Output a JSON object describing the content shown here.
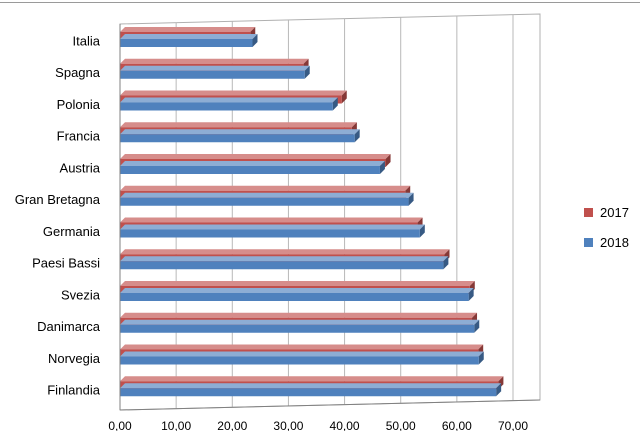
{
  "chart_data": {
    "type": "bar",
    "orientation": "horizontal",
    "categories": [
      "Italia",
      "Spagna",
      "Polonia",
      "Francia",
      "Austria",
      "Gran Bretagna",
      "Germania",
      "Paesi Bassi",
      "Svezia",
      "Danimarca",
      "Norvegia",
      "Finlandia"
    ],
    "series": [
      {
        "name": "2017",
        "values": [
          23.2,
          32.7,
          39.5,
          41.3,
          47.3,
          50.8,
          53.0,
          57.8,
          62.3,
          62.7,
          63.8,
          67.4
        ],
        "color": "#c0504d"
      },
      {
        "name": "2018",
        "values": [
          23.6,
          32.9,
          37.9,
          41.8,
          46.3,
          51.4,
          53.4,
          57.6,
          62.1,
          63.1,
          63.9,
          67.0
        ],
        "color": "#4f81bd"
      }
    ],
    "xlim": [
      0,
      70
    ],
    "x_ticks": [
      "0,00",
      "10,00",
      "20,00",
      "30,00",
      "40,00",
      "50,00",
      "60,00",
      "70,00"
    ],
    "grid": true,
    "legend_position": "right",
    "title": "",
    "xlabel": "",
    "ylabel": ""
  }
}
